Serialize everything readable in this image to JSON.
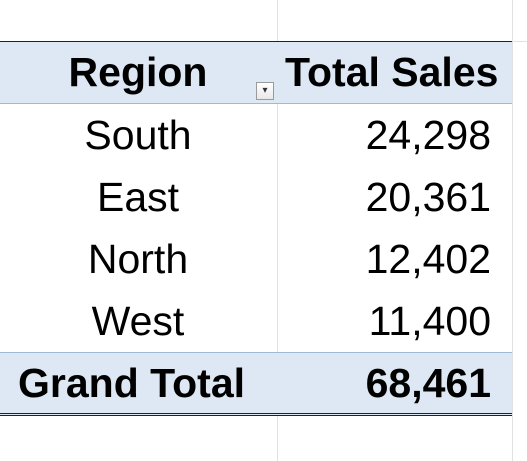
{
  "pivot_table": {
    "header": {
      "row_label": "Region",
      "value_label": "Total Sales",
      "filter_icon": "sort-filter-dropdown-icon"
    },
    "rows": [
      {
        "region": "South",
        "sales": "24,298"
      },
      {
        "region": "East",
        "sales": "20,361"
      },
      {
        "region": "North",
        "sales": "12,402"
      },
      {
        "region": "West",
        "sales": "11,400"
      }
    ],
    "grand_total": {
      "label": "Grand Total",
      "sales": "68,461"
    }
  },
  "colors": {
    "header_fill": "#dde8f4",
    "border_dark": "#222222",
    "gridline": "#e1e1e1"
  }
}
